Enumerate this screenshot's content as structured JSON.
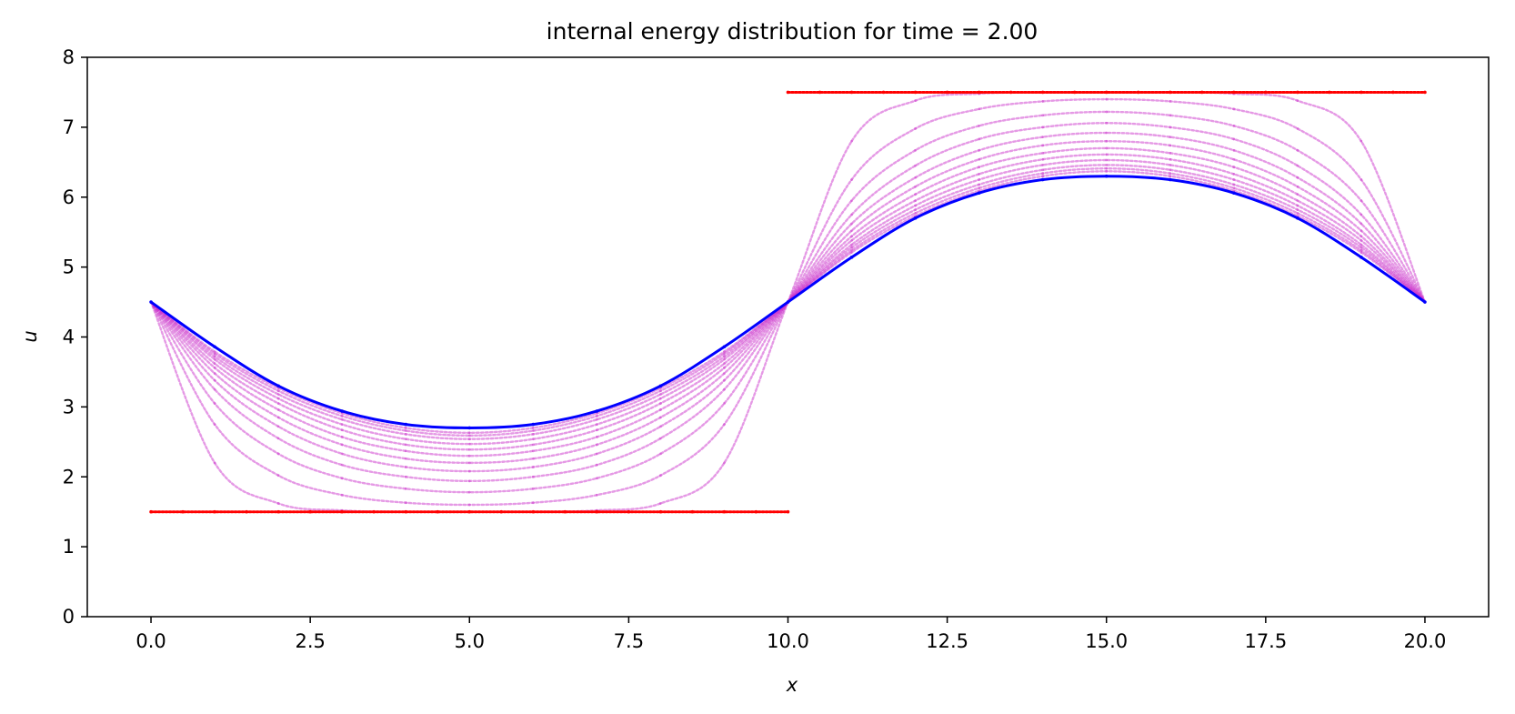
{
  "chart_data": {
    "type": "scatter",
    "title": "internal energy distribution for time = 2.00",
    "xlabel": "x",
    "ylabel": "u",
    "xlim": [
      -1.0,
      21.0
    ],
    "ylim": [
      0,
      8
    ],
    "xticks": [
      "0.0",
      "2.5",
      "5.0",
      "7.5",
      "10.0",
      "12.5",
      "15.0",
      "17.5",
      "20.0"
    ],
    "yticks": [
      "0",
      "1",
      "2",
      "3",
      "4",
      "5",
      "6",
      "7",
      "8"
    ],
    "grid": false,
    "legend": "none",
    "colors": {
      "initial": "#ff0000",
      "intermediate": "#cc33cc",
      "final": "#0000ff"
    },
    "series": [
      {
        "role": "initial",
        "x": [
          0,
          0.5,
          1,
          1.5,
          2,
          2.5,
          3,
          3.5,
          4,
          4.5,
          5,
          5.5,
          6,
          6.5,
          7,
          7.5,
          8,
          8.5,
          9,
          9.5,
          10,
          10,
          10.5,
          11,
          11.5,
          12,
          12.5,
          13,
          13.5,
          14,
          14.5,
          15,
          15.5,
          16,
          16.5,
          17,
          17.5,
          18,
          18.5,
          19,
          19.5,
          20
        ],
        "y": [
          1.5,
          1.5,
          1.5,
          1.5,
          1.5,
          1.5,
          1.5,
          1.5,
          1.5,
          1.5,
          1.5,
          1.5,
          1.5,
          1.5,
          1.5,
          1.5,
          1.5,
          1.5,
          1.5,
          1.5,
          1.5,
          7.5,
          7.5,
          7.5,
          7.5,
          7.5,
          7.5,
          7.5,
          7.5,
          7.5,
          7.5,
          7.5,
          7.5,
          7.5,
          7.5,
          7.5,
          7.5,
          7.5,
          7.5,
          7.5,
          7.5,
          7.5
        ]
      },
      {
        "role": "intermediate",
        "x": [
          0,
          1,
          2,
          3,
          4,
          5,
          6,
          7,
          8,
          9,
          10,
          11,
          12,
          13,
          14,
          15,
          16,
          17,
          18,
          19,
          20
        ],
        "y": [
          4.5,
          2.2,
          1.62,
          1.52,
          1.5,
          1.5,
          1.5,
          1.52,
          1.62,
          2.2,
          4.5,
          6.8,
          7.38,
          7.48,
          7.5,
          7.5,
          7.5,
          7.48,
          7.38,
          6.8,
          4.5
        ]
      },
      {
        "role": "intermediate",
        "x": [
          0,
          1,
          2,
          3,
          4,
          5,
          6,
          7,
          8,
          9,
          10,
          11,
          12,
          13,
          14,
          15,
          16,
          17,
          18,
          19,
          20
        ],
        "y": [
          4.5,
          2.75,
          2.02,
          1.74,
          1.63,
          1.6,
          1.63,
          1.74,
          2.02,
          2.75,
          4.5,
          6.25,
          6.98,
          7.26,
          7.37,
          7.4,
          7.37,
          7.26,
          6.98,
          6.25,
          4.5
        ]
      },
      {
        "role": "intermediate",
        "x": [
          0,
          1,
          2,
          3,
          4,
          5,
          6,
          7,
          8,
          9,
          10,
          11,
          12,
          13,
          14,
          15,
          16,
          17,
          18,
          19,
          20
        ],
        "y": [
          4.5,
          3.05,
          2.33,
          1.98,
          1.83,
          1.78,
          1.83,
          1.98,
          2.33,
          3.05,
          4.5,
          5.95,
          6.67,
          7.02,
          7.17,
          7.22,
          7.17,
          7.02,
          6.67,
          5.95,
          4.5
        ]
      },
      {
        "role": "intermediate",
        "x": [
          0,
          1,
          2,
          3,
          4,
          5,
          6,
          7,
          8,
          9,
          10,
          11,
          12,
          13,
          14,
          15,
          16,
          17,
          18,
          19,
          20
        ],
        "y": [
          4.5,
          3.25,
          2.55,
          2.17,
          2.0,
          1.94,
          2.0,
          2.17,
          2.55,
          3.25,
          4.5,
          5.75,
          6.45,
          6.83,
          7.0,
          7.06,
          7.0,
          6.83,
          6.45,
          5.75,
          4.5
        ]
      },
      {
        "role": "intermediate",
        "x": [
          0,
          1,
          2,
          3,
          4,
          5,
          6,
          7,
          8,
          9,
          10,
          11,
          12,
          13,
          14,
          15,
          16,
          17,
          18,
          19,
          20
        ],
        "y": [
          4.5,
          3.38,
          2.72,
          2.33,
          2.14,
          2.08,
          2.14,
          2.33,
          2.72,
          3.38,
          4.5,
          5.62,
          6.28,
          6.67,
          6.86,
          6.92,
          6.86,
          6.67,
          6.28,
          5.62,
          4.5
        ]
      },
      {
        "role": "intermediate",
        "x": [
          0,
          1,
          2,
          3,
          4,
          5,
          6,
          7,
          8,
          9,
          10,
          11,
          12,
          13,
          14,
          15,
          16,
          17,
          18,
          19,
          20
        ],
        "y": [
          4.5,
          3.48,
          2.85,
          2.46,
          2.26,
          2.2,
          2.26,
          2.46,
          2.85,
          3.48,
          4.5,
          5.52,
          6.15,
          6.54,
          6.74,
          6.8,
          6.74,
          6.54,
          6.15,
          5.52,
          4.5
        ]
      },
      {
        "role": "intermediate",
        "x": [
          0,
          1,
          2,
          3,
          4,
          5,
          6,
          7,
          8,
          9,
          10,
          11,
          12,
          13,
          14,
          15,
          16,
          17,
          18,
          19,
          20
        ],
        "y": [
          4.5,
          3.56,
          2.96,
          2.57,
          2.37,
          2.3,
          2.37,
          2.57,
          2.96,
          3.56,
          4.5,
          5.44,
          6.04,
          6.43,
          6.63,
          6.7,
          6.63,
          6.43,
          6.04,
          5.44,
          4.5
        ]
      },
      {
        "role": "intermediate",
        "x": [
          0,
          1,
          2,
          3,
          4,
          5,
          6,
          7,
          8,
          9,
          10,
          11,
          12,
          13,
          14,
          15,
          16,
          17,
          18,
          19,
          20
        ],
        "y": [
          4.5,
          3.62,
          3.05,
          2.67,
          2.46,
          2.39,
          2.46,
          2.67,
          3.05,
          3.62,
          4.5,
          5.38,
          5.95,
          6.33,
          6.54,
          6.61,
          6.54,
          6.33,
          5.95,
          5.38,
          4.5
        ]
      },
      {
        "role": "intermediate",
        "x": [
          0,
          1,
          2,
          3,
          4,
          5,
          6,
          7,
          8,
          9,
          10,
          11,
          12,
          13,
          14,
          15,
          16,
          17,
          18,
          19,
          20
        ],
        "y": [
          4.5,
          3.68,
          3.12,
          2.75,
          2.54,
          2.47,
          2.54,
          2.75,
          3.12,
          3.68,
          4.5,
          5.32,
          5.88,
          6.25,
          6.46,
          6.53,
          6.46,
          6.25,
          5.88,
          5.32,
          4.5
        ]
      },
      {
        "role": "intermediate",
        "x": [
          0,
          1,
          2,
          3,
          4,
          5,
          6,
          7,
          8,
          9,
          10,
          11,
          12,
          13,
          14,
          15,
          16,
          17,
          18,
          19,
          20
        ],
        "y": [
          4.5,
          3.72,
          3.18,
          2.82,
          2.61,
          2.54,
          2.61,
          2.82,
          3.18,
          3.72,
          4.5,
          5.28,
          5.82,
          6.18,
          6.39,
          6.46,
          6.39,
          6.18,
          5.82,
          5.28,
          4.5
        ]
      },
      {
        "role": "intermediate",
        "x": [
          0,
          1,
          2,
          3,
          4,
          5,
          6,
          7,
          8,
          9,
          10,
          11,
          12,
          13,
          14,
          15,
          16,
          17,
          18,
          19,
          20
        ],
        "y": [
          4.5,
          3.76,
          3.23,
          2.87,
          2.66,
          2.59,
          2.66,
          2.87,
          3.23,
          3.76,
          4.5,
          5.24,
          5.77,
          6.13,
          6.34,
          6.41,
          6.34,
          6.13,
          5.77,
          5.24,
          4.5
        ]
      },
      {
        "role": "intermediate",
        "x": [
          0,
          1,
          2,
          3,
          4,
          5,
          6,
          7,
          8,
          9,
          10,
          11,
          12,
          13,
          14,
          15,
          16,
          17,
          18,
          19,
          20
        ],
        "y": [
          4.5,
          3.79,
          3.27,
          2.91,
          2.7,
          2.63,
          2.7,
          2.91,
          3.27,
          3.79,
          4.5,
          5.21,
          5.73,
          6.09,
          6.3,
          6.37,
          6.3,
          6.09,
          5.73,
          5.21,
          4.5
        ]
      },
      {
        "role": "final",
        "x": [
          0,
          1,
          2,
          3,
          4,
          5,
          6,
          7,
          8,
          9,
          10,
          11,
          12,
          13,
          14,
          15,
          16,
          17,
          18,
          19,
          20
        ],
        "y": [
          4.5,
          3.86,
          3.3,
          2.94,
          2.75,
          2.7,
          2.75,
          2.94,
          3.3,
          3.86,
          4.5,
          5.14,
          5.7,
          6.06,
          6.25,
          6.3,
          6.25,
          6.06,
          5.7,
          5.14,
          4.5
        ]
      }
    ]
  }
}
